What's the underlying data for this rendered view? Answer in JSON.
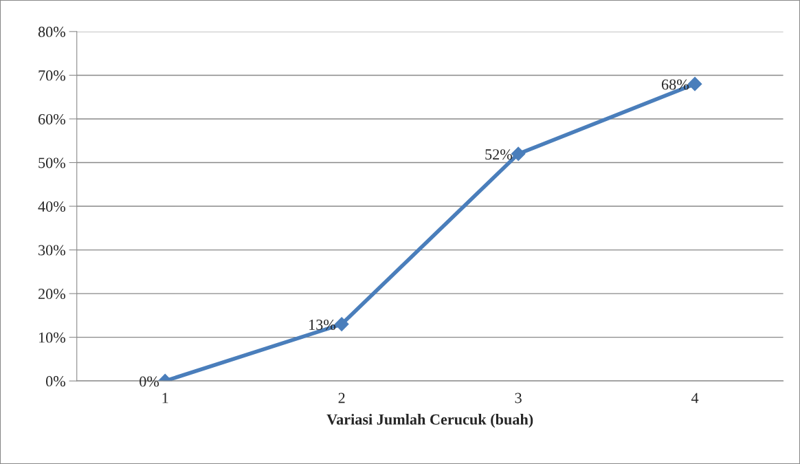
{
  "chart_data": {
    "type": "line",
    "xlabel": "Variasi Jumlah Cerucuk (buah)",
    "categories": [
      "1",
      "2",
      "3",
      "4"
    ],
    "series": [
      {
        "color": "#4a7ebb",
        "values": [
          0,
          13,
          52,
          68
        ],
        "value_labels": [
          "0%",
          "13%",
          "52%",
          "68%"
        ]
      }
    ],
    "ylim": [
      0,
      80
    ],
    "yticks": [
      {
        "value": 0,
        "label": "0%"
      },
      {
        "value": 10,
        "label": "10%"
      },
      {
        "value": 20,
        "label": "20%"
      },
      {
        "value": 30,
        "label": "30%"
      },
      {
        "value": 40,
        "label": "40%"
      },
      {
        "value": 50,
        "label": "50%"
      },
      {
        "value": 60,
        "label": "60%"
      },
      {
        "value": 70,
        "label": "70%"
      },
      {
        "value": 80,
        "label": "80%"
      }
    ],
    "grid": "y",
    "marker": "diamond",
    "line_style": "solid",
    "legend": false
  }
}
